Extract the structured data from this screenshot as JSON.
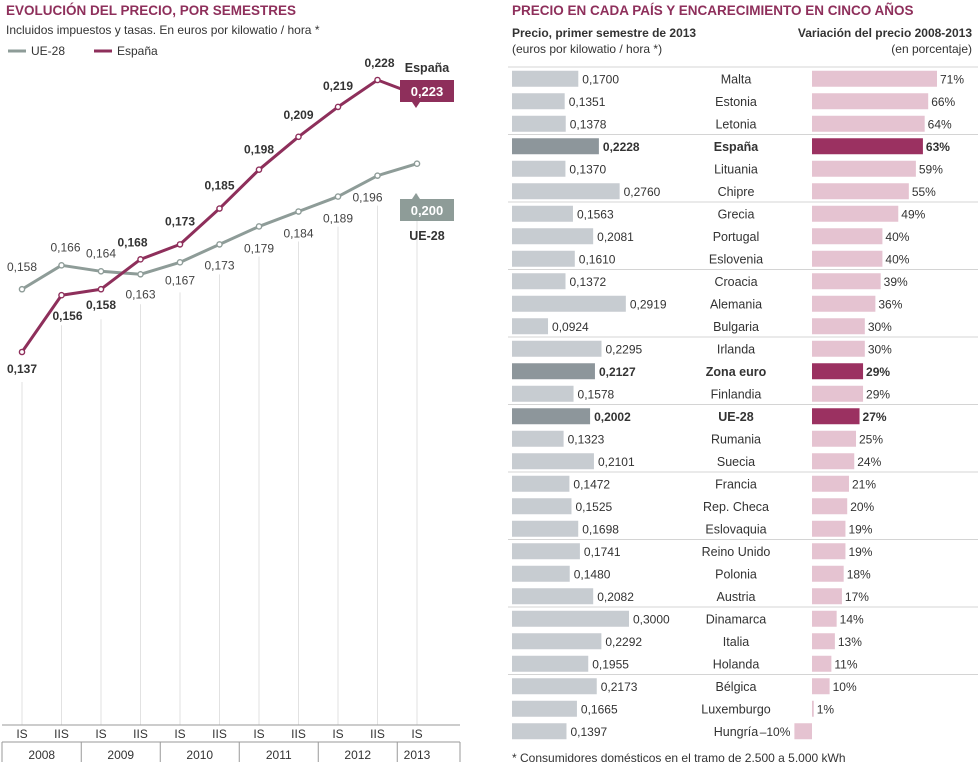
{
  "chart_data": [
    {
      "type": "line",
      "title": "EVOLUCIÓN DEL PRECIO, POR SEMESTRES",
      "subtitle": "Incluidos impuestos y tasas. En euros por kilowatio / hora *",
      "colors": {
        "UE-28": "#8e9c98",
        "España": "#8e2f5b"
      },
      "x": [
        "IS",
        "IIS",
        "IS",
        "IIS",
        "IS",
        "IIS",
        "IS",
        "IIS",
        "IS",
        "IIS",
        "IS"
      ],
      "years": [
        "2008",
        "2009",
        "2010",
        "2011",
        "2012",
        "2013"
      ],
      "series": [
        {
          "name": "UE-28",
          "values": [
            0.158,
            0.166,
            0.164,
            0.163,
            0.167,
            0.173,
            0.179,
            0.184,
            0.189,
            0.196,
            0.2
          ],
          "labels": [
            "0,158",
            "0,166",
            "0,164",
            "0,163",
            "0,167",
            "0,173",
            "0,179",
            "0,184",
            "0,189",
            "0,196",
            "0,200"
          ]
        },
        {
          "name": "España",
          "values": [
            0.137,
            0.156,
            0.158,
            0.168,
            0.173,
            0.185,
            0.198,
            0.209,
            0.219,
            0.228,
            0.223
          ],
          "labels": [
            "0,137",
            "0,156",
            "0,158",
            "0,168",
            "0,173",
            "0,185",
            "0,198",
            "0,209",
            "0,219",
            "0,228",
            "0,223"
          ]
        }
      ],
      "ylim": [
        0.137,
        0.228
      ],
      "grid": "vertical",
      "legend": "top-left"
    },
    {
      "type": "bar",
      "title": "PRECIO EN CADA PAÍS Y ENCARECIMIENTO EN CINCO AÑOS",
      "price_header": "Precio, primer semestre de 2013",
      "price_unit": "(euros por kilowatio / hora *)",
      "change_header": "Variación del precio 2008-2013",
      "change_unit": "(en porcentaje)",
      "footnote": "* Consumidores domésticos en el tramo de 2.500 a 5.000 kWh",
      "colors": {
        "price": "#c7ccd1",
        "price_highlight": "#8d969b",
        "change": "#e5c3d1",
        "change_highlight": "#9b3161"
      },
      "rows": [
        {
          "country": "Malta",
          "price": 0.17,
          "price_label": "0,1700",
          "change": 71,
          "change_label": "71%",
          "highlight": false
        },
        {
          "country": "Estonia",
          "price": 0.1351,
          "price_label": "0,1351",
          "change": 66,
          "change_label": "66%",
          "highlight": false
        },
        {
          "country": "Letonia",
          "price": 0.1378,
          "price_label": "0,1378",
          "change": 64,
          "change_label": "64%",
          "highlight": false
        },
        {
          "country": "España",
          "price": 0.2228,
          "price_label": "0,2228",
          "change": 63,
          "change_label": "63%",
          "highlight": true
        },
        {
          "country": "Lituania",
          "price": 0.137,
          "price_label": "0,1370",
          "change": 59,
          "change_label": "59%",
          "highlight": false
        },
        {
          "country": "Chipre",
          "price": 0.276,
          "price_label": "0,2760",
          "change": 55,
          "change_label": "55%",
          "highlight": false
        },
        {
          "country": "Grecia",
          "price": 0.1563,
          "price_label": "0,1563",
          "change": 49,
          "change_label": "49%",
          "highlight": false
        },
        {
          "country": "Portugal",
          "price": 0.2081,
          "price_label": "0,2081",
          "change": 40,
          "change_label": "40%",
          "highlight": false
        },
        {
          "country": "Eslovenia",
          "price": 0.161,
          "price_label": "0,1610",
          "change": 40,
          "change_label": "40%",
          "highlight": false
        },
        {
          "country": "Croacia",
          "price": 0.1372,
          "price_label": "0,1372",
          "change": 39,
          "change_label": "39%",
          "highlight": false
        },
        {
          "country": "Alemania",
          "price": 0.2919,
          "price_label": "0,2919",
          "change": 36,
          "change_label": "36%",
          "highlight": false
        },
        {
          "country": "Bulgaria",
          "price": 0.0924,
          "price_label": "0,0924",
          "change": 30,
          "change_label": "30%",
          "highlight": false
        },
        {
          "country": "Irlanda",
          "price": 0.2295,
          "price_label": "0,2295",
          "change": 30,
          "change_label": "30%",
          "highlight": false
        },
        {
          "country": "Zona euro",
          "price": 0.2127,
          "price_label": "0,2127",
          "change": 29,
          "change_label": "29%",
          "highlight": true
        },
        {
          "country": "Finlandia",
          "price": 0.1578,
          "price_label": "0,1578",
          "change": 29,
          "change_label": "29%",
          "highlight": false
        },
        {
          "country": "UE-28",
          "price": 0.2002,
          "price_label": "0,2002",
          "change": 27,
          "change_label": "27%",
          "highlight": true
        },
        {
          "country": "Rumania",
          "price": 0.1323,
          "price_label": "0,1323",
          "change": 25,
          "change_label": "25%",
          "highlight": false
        },
        {
          "country": "Suecia",
          "price": 0.2101,
          "price_label": "0,2101",
          "change": 24,
          "change_label": "24%",
          "highlight": false
        },
        {
          "country": "Francia",
          "price": 0.1472,
          "price_label": "0,1472",
          "change": 21,
          "change_label": "21%",
          "highlight": false
        },
        {
          "country": "Rep. Checa",
          "price": 0.1525,
          "price_label": "0,1525",
          "change": 20,
          "change_label": "20%",
          "highlight": false
        },
        {
          "country": "Eslovaquia",
          "price": 0.1698,
          "price_label": "0,1698",
          "change": 19,
          "change_label": "19%",
          "highlight": false
        },
        {
          "country": "Reino Unido",
          "price": 0.1741,
          "price_label": "0,1741",
          "change": 19,
          "change_label": "19%",
          "highlight": false
        },
        {
          "country": "Polonia",
          "price": 0.148,
          "price_label": "0,1480",
          "change": 18,
          "change_label": "18%",
          "highlight": false
        },
        {
          "country": "Austria",
          "price": 0.2082,
          "price_label": "0,2082",
          "change": 17,
          "change_label": "17%",
          "highlight": false
        },
        {
          "country": "Dinamarca",
          "price": 0.3,
          "price_label": "0,3000",
          "change": 14,
          "change_label": "14%",
          "highlight": false
        },
        {
          "country": "Italia",
          "price": 0.2292,
          "price_label": "0,2292",
          "change": 13,
          "change_label": "13%",
          "highlight": false
        },
        {
          "country": "Holanda",
          "price": 0.1955,
          "price_label": "0,1955",
          "change": 11,
          "change_label": "11%",
          "highlight": false
        },
        {
          "country": "Bélgica",
          "price": 0.2173,
          "price_label": "0,2173",
          "change": 10,
          "change_label": "10%",
          "highlight": false
        },
        {
          "country": "Luxemburgo",
          "price": 0.1665,
          "price_label": "0,1665",
          "change": 1,
          "change_label": "1%",
          "highlight": false
        },
        {
          "country": "Hungría",
          "price": 0.1397,
          "price_label": "0,1397",
          "change": -10,
          "change_label": "–10%",
          "highlight": false
        }
      ]
    }
  ]
}
